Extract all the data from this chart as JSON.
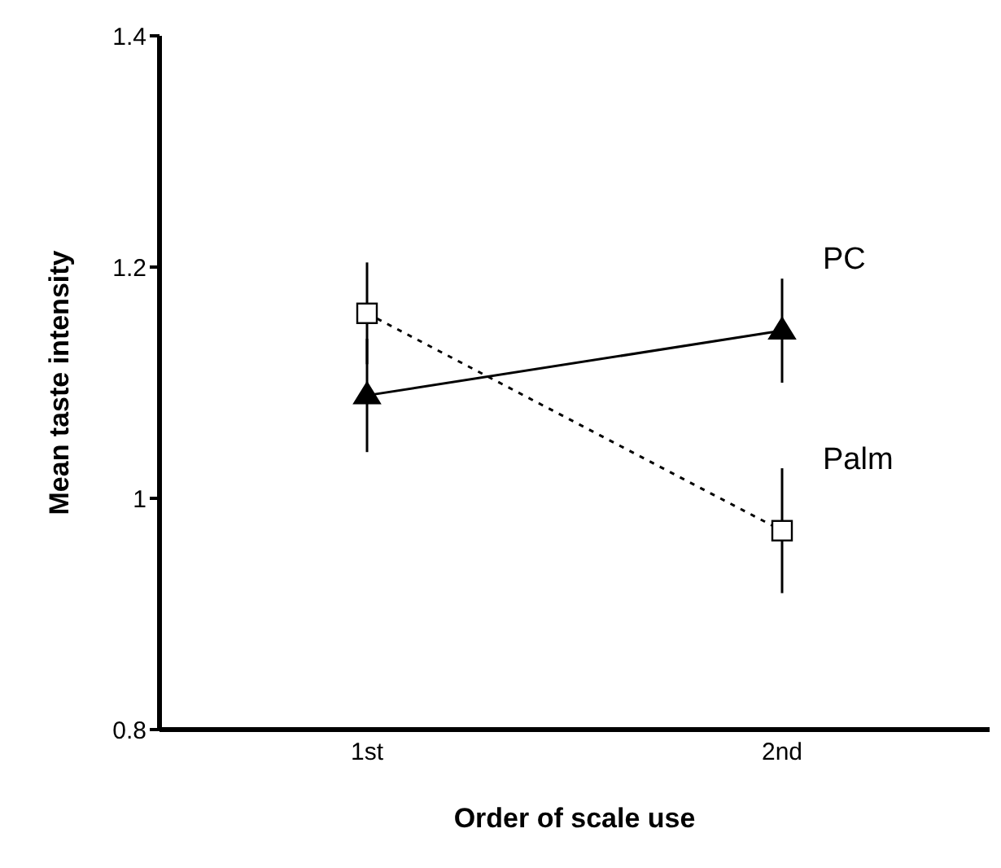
{
  "chart_data": {
    "type": "line",
    "xlabel": "Order of scale use",
    "ylabel": "Mean taste intensity",
    "categories": [
      "1st",
      "2nd"
    ],
    "ylim": [
      0.8,
      1.4
    ],
    "yticks": [
      0.8,
      1,
      1.2,
      1.4
    ],
    "grid": false,
    "legend": false,
    "series": [
      {
        "name": "PC",
        "color": "#000000",
        "values": [
          1.089,
          1.145
        ],
        "errors": [
          0.049,
          0.045
        ],
        "marker": "triangle",
        "line_style": "solid"
      },
      {
        "name": "Palm",
        "color": "#000000",
        "values": [
          1.16,
          0.972
        ],
        "errors": [
          0.044,
          0.054
        ],
        "marker": "square",
        "line_style": "dotted"
      }
    ]
  }
}
